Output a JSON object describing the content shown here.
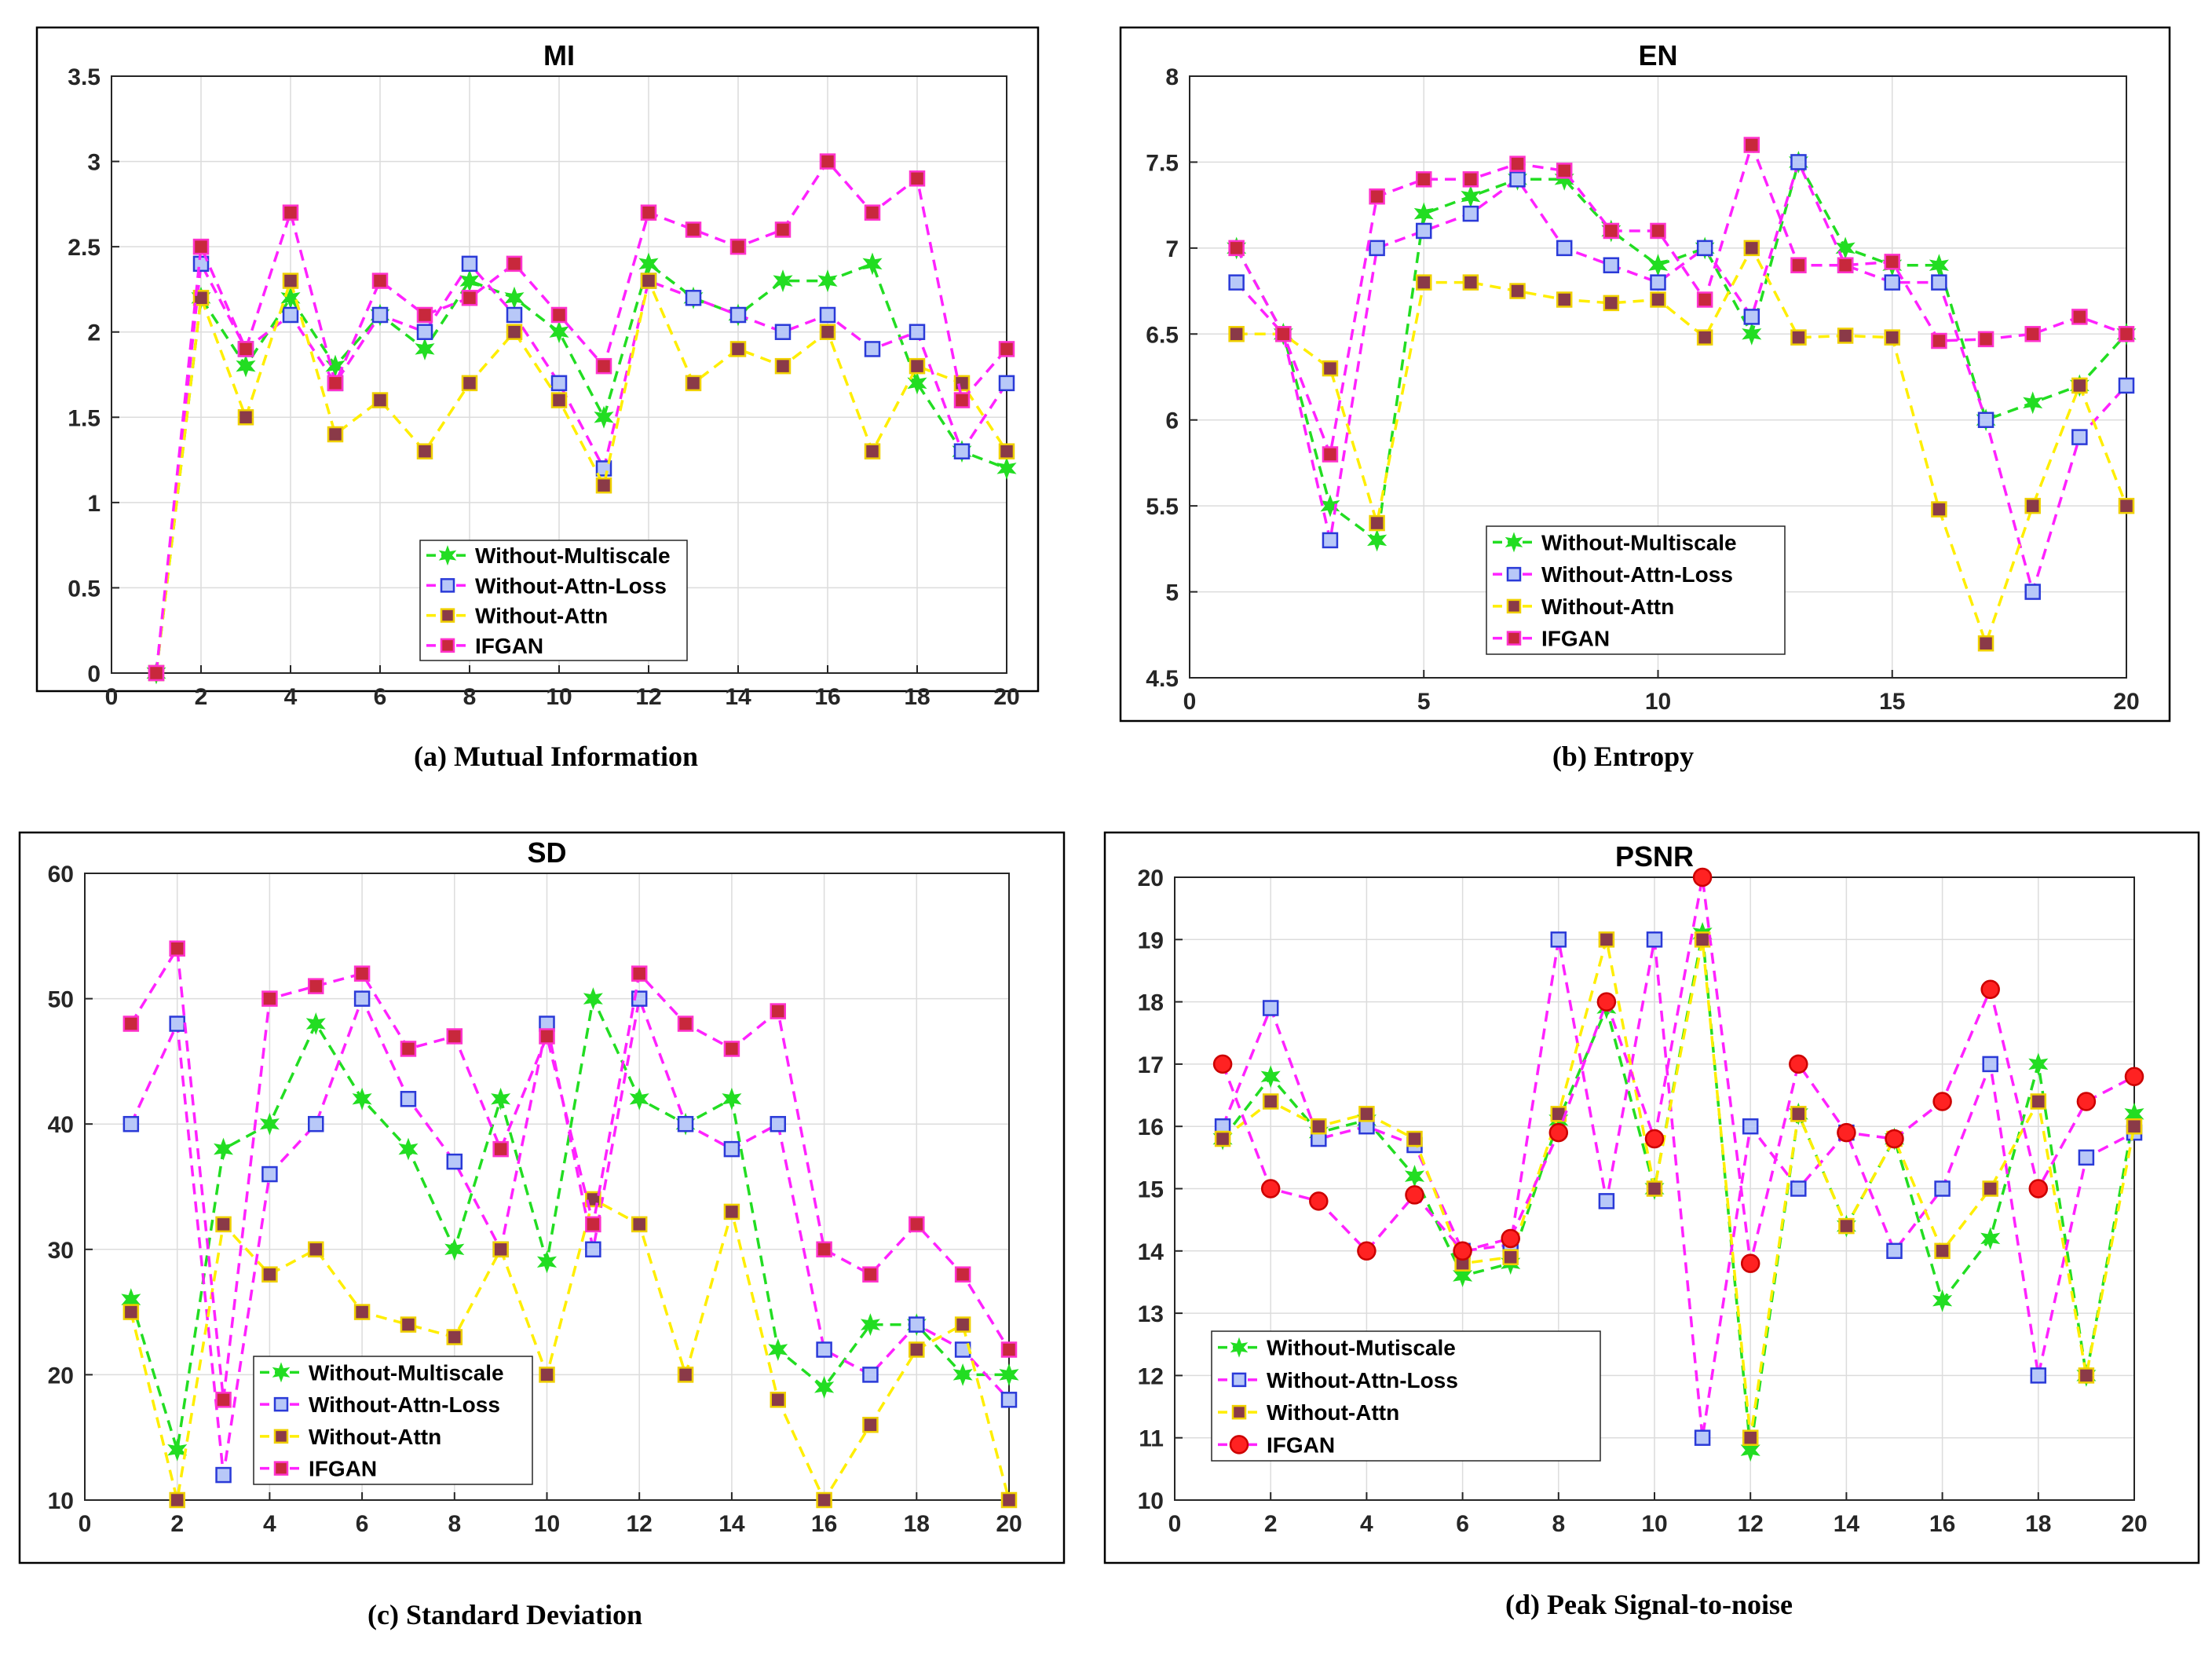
{
  "chart_data": [
    {
      "type": "line",
      "title": "MI",
      "caption": "(a)  Mutual Information",
      "xlim": [
        0,
        20
      ],
      "ylim": [
        0,
        3.5
      ],
      "xticks": [
        0,
        2,
        4,
        6,
        8,
        10,
        12,
        14,
        16,
        18,
        20
      ],
      "yticks": [
        0,
        0.5,
        1,
        1.5,
        2,
        2.5,
        3,
        3.5
      ],
      "grid": true,
      "legend_position": "bottom-center",
      "x": [
        1,
        2,
        3,
        4,
        5,
        6,
        7,
        8,
        9,
        10,
        11,
        12,
        13,
        14,
        15,
        16,
        17,
        18,
        19,
        20
      ],
      "series": [
        {
          "name": "Without-Multiscale",
          "color": "#22dd22",
          "marker": "star",
          "values": [
            0,
            2.2,
            1.8,
            2.2,
            1.8,
            2.1,
            1.9,
            2.3,
            2.2,
            2.0,
            1.5,
            2.4,
            2.2,
            2.1,
            2.3,
            2.3,
            2.4,
            1.7,
            1.3,
            1.2
          ]
        },
        {
          "name": "Without-Attn-Loss",
          "color": "#ff22ff",
          "marker": "square",
          "values": [
            0,
            2.4,
            1.9,
            2.1,
            1.7,
            2.1,
            2.0,
            2.4,
            2.1,
            1.7,
            1.2,
            2.3,
            2.2,
            2.1,
            2.0,
            2.1,
            1.9,
            2.0,
            1.3,
            1.7
          ]
        },
        {
          "name": "Without-Attn",
          "color": "#ffee00",
          "marker": "square",
          "values": [
            0,
            2.2,
            1.5,
            2.3,
            1.4,
            1.6,
            1.3,
            1.7,
            2.0,
            1.6,
            1.1,
            2.3,
            1.7,
            1.9,
            1.8,
            2.0,
            1.3,
            1.8,
            1.7,
            1.3
          ]
        },
        {
          "name": "IFGAN",
          "color": "#ff22ff",
          "marker": "square",
          "values": [
            0,
            2.5,
            1.9,
            2.7,
            1.7,
            2.3,
            2.1,
            2.2,
            2.4,
            2.1,
            1.8,
            2.7,
            2.6,
            2.5,
            2.6,
            3.0,
            2.7,
            2.9,
            1.6,
            1.9
          ]
        }
      ]
    },
    {
      "type": "line",
      "title": "EN",
      "caption": "(b) Entropy",
      "xlim": [
        0,
        20
      ],
      "ylim": [
        4.5,
        8
      ],
      "xticks": [
        0,
        5,
        10,
        15,
        20
      ],
      "yticks": [
        4.5,
        5,
        5.5,
        6,
        6.5,
        7,
        7.5,
        8
      ],
      "grid": true,
      "legend_position": "bottom-center",
      "x": [
        1,
        2,
        3,
        4,
        5,
        6,
        7,
        8,
        9,
        10,
        11,
        12,
        13,
        14,
        15,
        16,
        17,
        18,
        19,
        20
      ],
      "series": [
        {
          "name": "Without-Multiscale",
          "color": "#22dd22",
          "marker": "star",
          "values": [
            7.0,
            6.5,
            5.5,
            5.3,
            7.2,
            7.3,
            7.4,
            7.4,
            7.1,
            6.9,
            7.0,
            6.5,
            7.5,
            7.0,
            6.9,
            6.9,
            6.0,
            6.1,
            6.2,
            6.5
          ]
        },
        {
          "name": "Without-Attn-Loss",
          "color": "#ff22ff",
          "marker": "square",
          "values": [
            6.8,
            6.5,
            5.3,
            7.0,
            7.1,
            7.2,
            7.4,
            7.0,
            6.9,
            6.8,
            7.0,
            6.6,
            7.5,
            6.9,
            6.8,
            6.8,
            6.0,
            5.0,
            5.9,
            6.2
          ]
        },
        {
          "name": "Without-Attn",
          "color": "#ffee00",
          "marker": "square",
          "values": [
            6.5,
            6.5,
            6.3,
            5.4,
            6.8,
            6.8,
            6.75,
            6.7,
            6.68,
            6.7,
            6.48,
            7.0,
            6.48,
            6.49,
            6.48,
            5.48,
            4.7,
            5.5,
            6.2,
            5.5
          ]
        },
        {
          "name": "IFGAN",
          "color": "#ff22ff",
          "marker": "square",
          "values": [
            7.0,
            6.5,
            5.8,
            7.3,
            7.4,
            7.4,
            7.49,
            7.45,
            7.1,
            7.1,
            6.7,
            7.6,
            6.9,
            6.9,
            6.92,
            6.46,
            6.47,
            6.5,
            6.6,
            6.5
          ]
        }
      ]
    },
    {
      "type": "line",
      "title": "SD",
      "caption": "(c) Standard Deviation",
      "xlim": [
        0,
        20
      ],
      "ylim": [
        10,
        60
      ],
      "xticks": [
        0,
        2,
        4,
        6,
        8,
        10,
        12,
        14,
        16,
        18,
        20
      ],
      "yticks": [
        10,
        20,
        30,
        40,
        50,
        60
      ],
      "grid": true,
      "legend_position": "bottom-center",
      "x": [
        1,
        2,
        3,
        4,
        5,
        6,
        7,
        8,
        9,
        10,
        11,
        12,
        13,
        14,
        15,
        16,
        17,
        18,
        19,
        20
      ],
      "series": [
        {
          "name": "Without-Multiscale",
          "color": "#22dd22",
          "marker": "star",
          "values": [
            26,
            14,
            38,
            40,
            48,
            42,
            38,
            30,
            42,
            29,
            50,
            42,
            40,
            42,
            22,
            19,
            24,
            24,
            20,
            20
          ]
        },
        {
          "name": "Without-Attn-Loss",
          "color": "#ff22ff",
          "marker": "square",
          "values": [
            40,
            48,
            12,
            36,
            40,
            50,
            42,
            37,
            30,
            48,
            30,
            50,
            40,
            38,
            40,
            22,
            20,
            24,
            22,
            18
          ]
        },
        {
          "name": "Without-Attn",
          "color": "#ffee00",
          "marker": "square",
          "values": [
            25,
            10,
            32,
            28,
            30,
            25,
            24,
            23,
            30,
            20,
            34,
            32,
            20,
            33,
            18,
            10,
            16,
            22,
            24,
            10
          ]
        },
        {
          "name": "IFGAN",
          "color": "#ff22ff",
          "marker": "square",
          "values": [
            48,
            54,
            18,
            50,
            51,
            52,
            46,
            47,
            38,
            47,
            32,
            52,
            48,
            46,
            49,
            30,
            28,
            32,
            28,
            22
          ]
        }
      ]
    },
    {
      "type": "line",
      "title": "PSNR",
      "caption": "(d) Peak Signal-to-noise",
      "xlim": [
        0,
        20
      ],
      "ylim": [
        10,
        20
      ],
      "xticks": [
        0,
        2,
        4,
        6,
        8,
        10,
        12,
        14,
        16,
        18,
        20
      ],
      "yticks": [
        10,
        11,
        12,
        13,
        14,
        15,
        16,
        17,
        18,
        19,
        20
      ],
      "grid": true,
      "legend_position": "bottom-left",
      "x": [
        1,
        2,
        3,
        4,
        5,
        6,
        7,
        8,
        9,
        10,
        11,
        12,
        13,
        14,
        15,
        16,
        17,
        18,
        19,
        20
      ],
      "series": [
        {
          "name": "Without-Mutiscale",
          "color": "#22dd22",
          "marker": "star",
          "values": [
            15.8,
            16.8,
            15.9,
            16.1,
            15.2,
            13.6,
            13.8,
            16.1,
            17.9,
            15.0,
            19.1,
            10.8,
            16.2,
            14.4,
            15.8,
            13.2,
            14.2,
            17.0,
            12.0,
            16.2
          ]
        },
        {
          "name": "Without-Attn-Loss",
          "color": "#ff22ff",
          "marker": "square",
          "values": [
            16.0,
            17.9,
            15.8,
            16.0,
            15.7,
            14.0,
            14.1,
            19.0,
            14.8,
            19.0,
            11.0,
            16.0,
            15.0,
            15.9,
            14.0,
            15.0,
            17.0,
            12.0,
            15.5,
            15.9
          ]
        },
        {
          "name": "Without-Attn",
          "color": "#ffee00",
          "marker": "square",
          "values": [
            15.8,
            16.4,
            16.0,
            16.2,
            15.8,
            13.8,
            13.9,
            16.2,
            19.0,
            15.0,
            19.0,
            11.0,
            16.2,
            14.4,
            15.8,
            14.0,
            15.0,
            16.4,
            12.0,
            16.0
          ]
        },
        {
          "name": "IFGAN",
          "color": "#ff22ff",
          "marker": "circle",
          "values": [
            17.0,
            15.0,
            14.8,
            14.0,
            14.9,
            14.0,
            14.2,
            15.9,
            18.0,
            15.8,
            20.0,
            13.8,
            17.0,
            15.9,
            15.8,
            16.4,
            18.2,
            15.0,
            16.4,
            16.8
          ]
        }
      ]
    }
  ]
}
